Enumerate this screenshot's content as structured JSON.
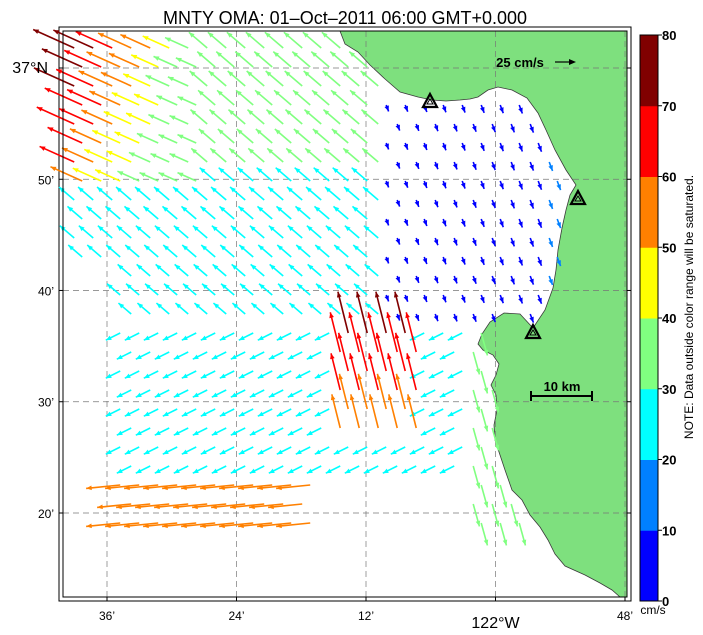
{
  "title": "MNTY OMA: 01–Oct–2011 06:00 GMT+0.000",
  "map": {
    "lat_labels": [
      {
        "text": "37°N",
        "lat": 37.0
      },
      {
        "text": "50’",
        "lat": 36.8333
      },
      {
        "text": "40’",
        "lat": 36.6667
      },
      {
        "text": "30’",
        "lat": 36.5
      },
      {
        "text": "20’",
        "lat": 36.3333
      }
    ],
    "lon_labels": [
      {
        "text": "36’",
        "lon": -122.6
      },
      {
        "text": "24’",
        "lon": -122.4
      },
      {
        "text": "12’",
        "lon": -122.2
      },
      {
        "text": "122°W",
        "lon": -122.0
      },
      {
        "text": "48’",
        "lon": -121.8
      }
    ],
    "land_color": "#7ee07e",
    "sites": [
      "site-triangle-icon-1",
      "site-triangle-icon-2",
      "site-triangle-icon-3"
    ]
  },
  "reference_vector": {
    "label": "25 cm/s",
    "speed": 25
  },
  "scale_bar": {
    "label": "10 km",
    "length_km": 10
  },
  "colorbar": {
    "ticks": [
      "0",
      "10",
      "20",
      "30",
      "40",
      "50",
      "60",
      "70",
      "80"
    ],
    "unit": "cm/s",
    "note": "NOTE: Data outside color range will be saturated.",
    "colors": [
      "#0000ff",
      "#0080ff",
      "#00ffff",
      "#80ff80",
      "#ffff00",
      "#ff8000",
      "#ff0000",
      "#800000"
    ]
  }
}
